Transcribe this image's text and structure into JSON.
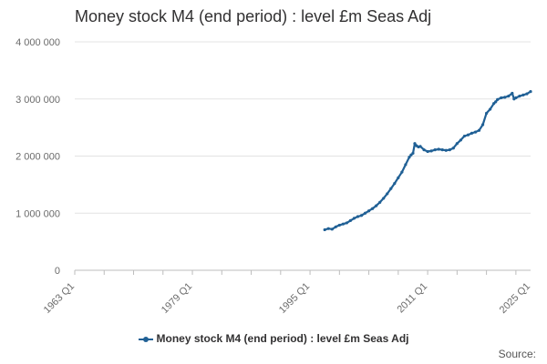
{
  "chart_data": {
    "type": "line",
    "title": "Money stock M4 (end period) : level £m Seas Adj",
    "xlabel": "",
    "ylabel": "",
    "x_tick_labels": [
      "1963 Q1",
      "1979 Q1",
      "1995 Q1",
      "2011 Q1",
      "2025 Q1"
    ],
    "y_tick_labels": [
      "0",
      "1 000 000",
      "2 000 000",
      "3 000 000",
      "4 000 000"
    ],
    "ylim": [
      0,
      4000000
    ],
    "xlim": [
      1963.0,
      2025.0
    ],
    "grid": "horizontal",
    "legend_position": "bottom",
    "series": [
      {
        "name": "Money stock M4 (end period) : level £m Seas Adj",
        "color": "#206095",
        "x": [
          1997.0,
          1997.5,
          1998.0,
          1998.5,
          1999.0,
          1999.5,
          2000.0,
          2000.5,
          2001.0,
          2001.5,
          2002.0,
          2002.5,
          2003.0,
          2003.5,
          2004.0,
          2004.5,
          2005.0,
          2005.5,
          2006.0,
          2006.5,
          2007.0,
          2007.5,
          2008.0,
          2008.5,
          2008.75,
          2009.0,
          2009.25,
          2009.5,
          2009.75,
          2010.0,
          2010.5,
          2011.0,
          2011.5,
          2012.0,
          2012.5,
          2013.0,
          2013.5,
          2014.0,
          2014.5,
          2015.0,
          2015.5,
          2016.0,
          2016.5,
          2017.0,
          2017.5,
          2018.0,
          2018.5,
          2019.0,
          2019.5,
          2020.0,
          2020.25,
          2020.5,
          2021.0,
          2021.5,
          2022.0,
          2022.5,
          2022.75,
          2023.0,
          2023.5,
          2024.0,
          2024.5,
          2025.0
        ],
        "values": [
          710000,
          730000,
          720000,
          760000,
          790000,
          810000,
          830000,
          870000,
          910000,
          940000,
          960000,
          1000000,
          1040000,
          1080000,
          1130000,
          1190000,
          1260000,
          1340000,
          1430000,
          1520000,
          1620000,
          1720000,
          1850000,
          1980000,
          2020000,
          2050000,
          2220000,
          2180000,
          2160000,
          2170000,
          2110000,
          2080000,
          2090000,
          2110000,
          2120000,
          2110000,
          2100000,
          2110000,
          2140000,
          2220000,
          2280000,
          2350000,
          2370000,
          2400000,
          2420000,
          2450000,
          2550000,
          2750000,
          2820000,
          2920000,
          2950000,
          2990000,
          3020000,
          3030000,
          3050000,
          3100000,
          3000000,
          3020000,
          3050000,
          3070000,
          3090000,
          3130000
        ]
      }
    ]
  },
  "legend_label": "Money stock M4 (end period) : level £m Seas Adj",
  "source_label": "Source:"
}
